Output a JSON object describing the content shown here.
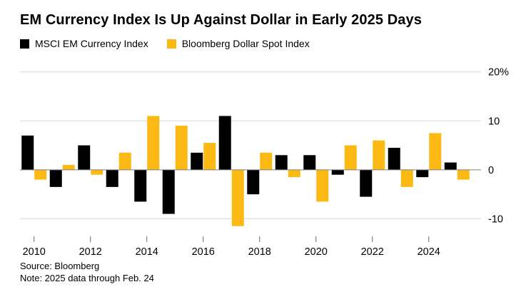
{
  "chart": {
    "title": "EM Currency Index Is Up Against Dollar in Early 2025 Days",
    "source": "Source: Bloomberg",
    "note": "Note: 2025 data through Feb. 24"
  },
  "chart_data": {
    "type": "bar",
    "title": "EM Currency Index Is Up Against Dollar in Early 2025 Days",
    "categories": [
      "2010",
      "2011",
      "2012",
      "2013",
      "2014",
      "2015",
      "2016",
      "2017",
      "2018",
      "2019",
      "2020",
      "2021",
      "2022",
      "2023",
      "2024",
      "2025"
    ],
    "series": [
      {
        "name": "MSCI EM Currency Index",
        "color": "#000000",
        "values": [
          7,
          -3.5,
          5,
          -3.5,
          -6.5,
          -9,
          3.5,
          11,
          -5,
          3,
          3,
          -1,
          -5.5,
          4.5,
          -1.5,
          1.5
        ]
      },
      {
        "name": "Bloomberg Dollar Spot Index",
        "color": "#fdb913",
        "values": [
          -2,
          1,
          -1,
          3.5,
          11,
          9,
          5.5,
          -11.5,
          3.5,
          -1.5,
          -6.5,
          5,
          6,
          -3.5,
          7.5,
          -2
        ]
      }
    ],
    "ylim": [
      -13,
      22
    ],
    "y_ticks": [
      {
        "value": 20,
        "label": "20%"
      },
      {
        "value": 10,
        "label": "10"
      },
      {
        "value": 0,
        "label": "0"
      },
      {
        "value": -10,
        "label": "-10"
      }
    ],
    "x_tick_labels": [
      "2010",
      "2012",
      "2014",
      "2016",
      "2018",
      "2020",
      "2022",
      "2024"
    ],
    "grid": "horizontal",
    "legend_position": "top",
    "colors": {
      "gridline": "#d9d9d9",
      "zero_line": "#808080",
      "tick": "#666666",
      "axis_text": "#000000"
    }
  }
}
